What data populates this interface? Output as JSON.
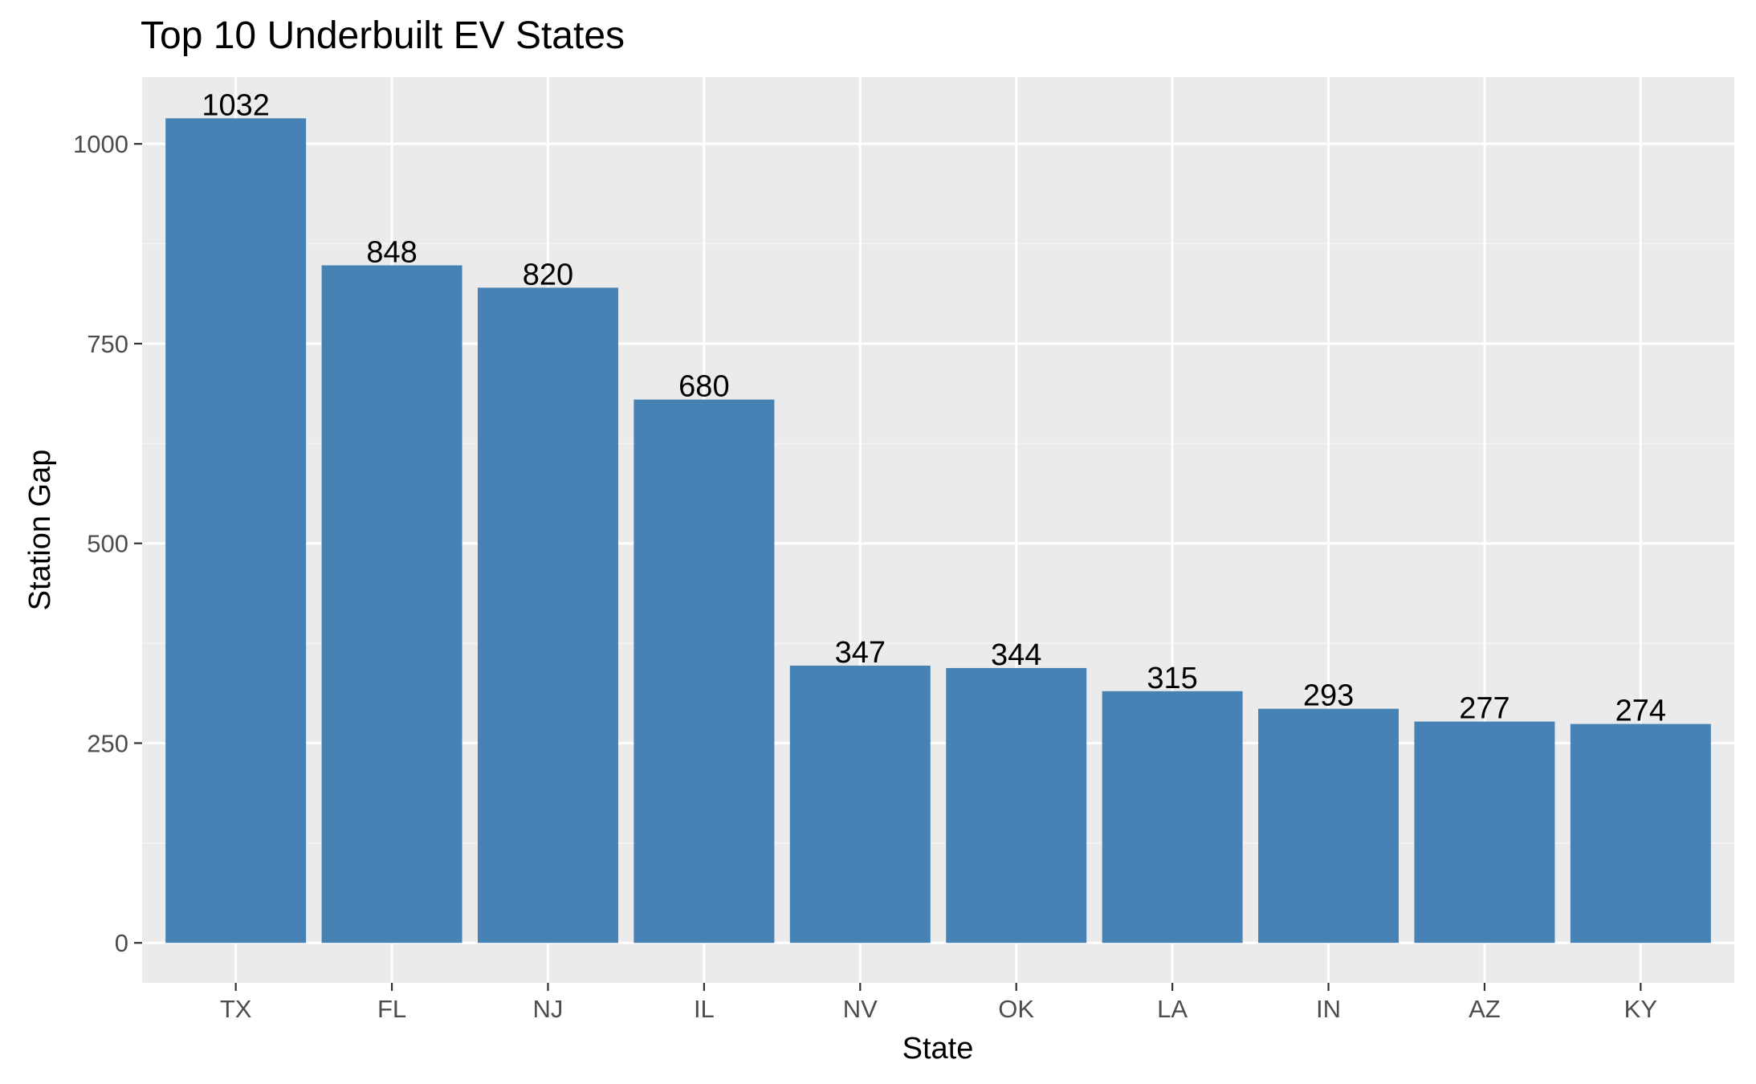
{
  "chart_data": {
    "type": "bar",
    "title": "Top 10 Underbuilt EV States",
    "xlabel": "State",
    "ylabel": "Station Gap",
    "categories": [
      "TX",
      "FL",
      "NJ",
      "IL",
      "NV",
      "OK",
      "LA",
      "IN",
      "AZ",
      "KY"
    ],
    "values": [
      1032,
      848,
      820,
      680,
      347,
      344,
      315,
      293,
      277,
      274
    ],
    "data_labels": [
      "1032",
      "848",
      "820",
      "680",
      "347",
      "344",
      "315",
      "293",
      "277",
      "274"
    ],
    "y_ticks": [
      0,
      250,
      500,
      750,
      1000
    ],
    "ylim": [
      -50,
      1083.6
    ],
    "grid": true,
    "legend": "none",
    "colors": {
      "bar": "#4682B4",
      "panel_background": "#EBEBEB",
      "grid_major": "#FFFFFF",
      "grid_minor": "#F5F5F5",
      "tick_text": "#4D4D4D",
      "tick_mark": "#333333",
      "text": "#000000"
    }
  }
}
